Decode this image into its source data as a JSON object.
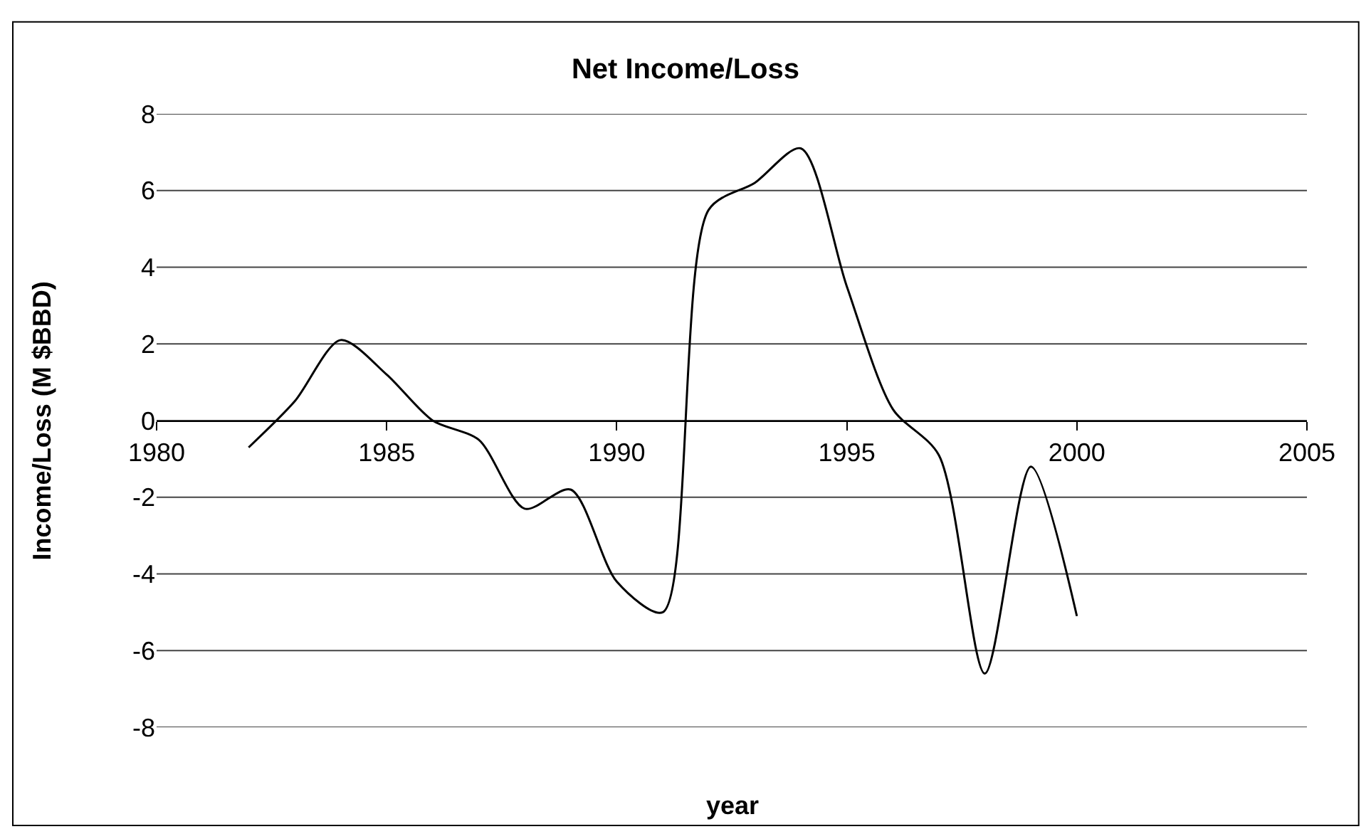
{
  "chart_data": {
    "type": "line",
    "title": "Net Income/Loss",
    "xlabel": "year",
    "ylabel": "Income/Loss (M $BBD)",
    "x": [
      1982,
      1983,
      1984,
      1985,
      1986,
      1987,
      1988,
      1989,
      1990,
      1991,
      1992,
      1993,
      1994,
      1995,
      1996,
      1997,
      1998,
      1999,
      2000
    ],
    "series": [
      {
        "color": "#000000",
        "values": [
          -0.7,
          0.5,
          2.1,
          1.2,
          0.0,
          -0.5,
          -2.3,
          -1.8,
          -4.2,
          -5.0,
          5.5,
          6.2,
          7.1,
          3.5,
          0.3,
          -0.9,
          -6.6,
          -1.2,
          -5.1
        ]
      }
    ],
    "xlim": [
      1980,
      2005
    ],
    "xticks": [
      1980,
      1985,
      1990,
      1995,
      2000,
      2005
    ],
    "ylim": [
      -8,
      8
    ],
    "yticks": [
      -8,
      -6,
      -4,
      -2,
      0,
      2,
      4,
      6,
      8
    ],
    "grid": "y",
    "marker": "none",
    "line_style": "solid"
  }
}
